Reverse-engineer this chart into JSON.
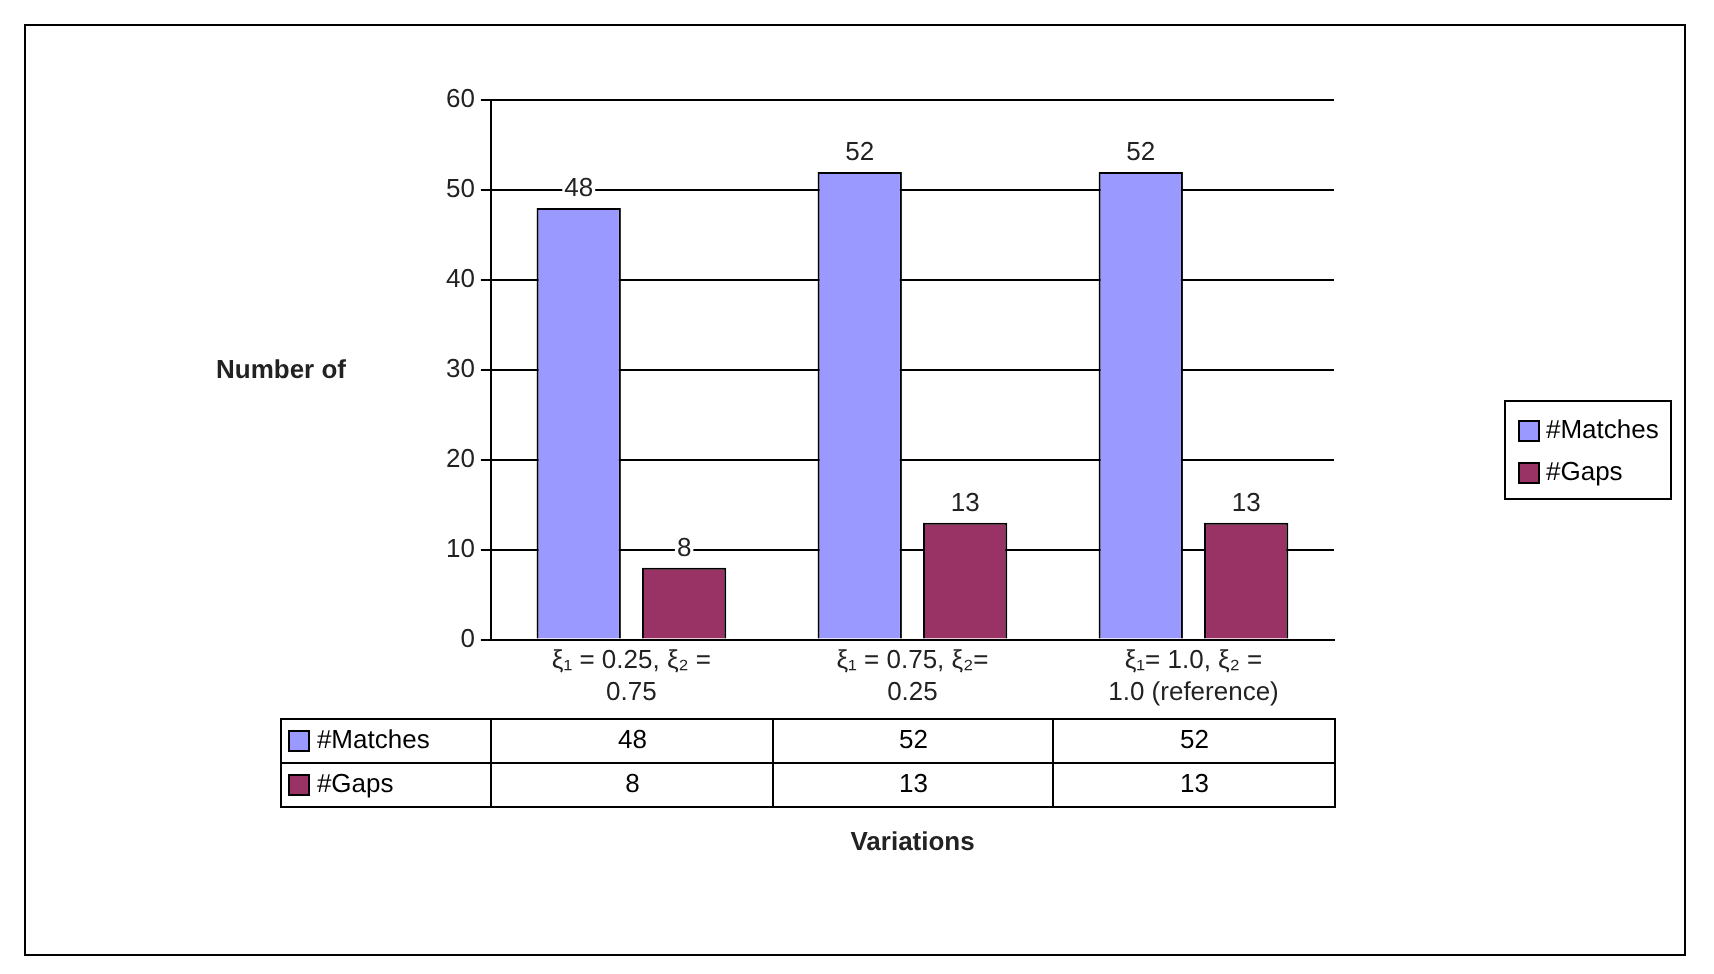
{
  "chart_data": {
    "type": "bar",
    "xlabel": "Variations",
    "ylabel": "Number of",
    "categories": [
      "ξ₁ = 0.25, ξ₂ = 0.75",
      "ξ₁ = 0.75, ξ₂= 0.25",
      "ξ₁= 1.0, ξ₂ = 1.0 (reference)"
    ],
    "series": [
      {
        "name": "#Matches",
        "color": "#9999ff",
        "values": [
          48,
          52,
          52
        ],
        "value_labels": [
          "48",
          "52",
          "52"
        ]
      },
      {
        "name": "#Gaps",
        "color": "#993366",
        "values": [
          8,
          13,
          13
        ],
        "value_labels": [
          "8",
          "13",
          "13"
        ]
      }
    ],
    "ylim": [
      0,
      60
    ],
    "yticks": [
      0,
      10,
      20,
      30,
      40,
      50,
      60
    ],
    "grid": "y",
    "legend": "right",
    "data_labels": true
  }
}
